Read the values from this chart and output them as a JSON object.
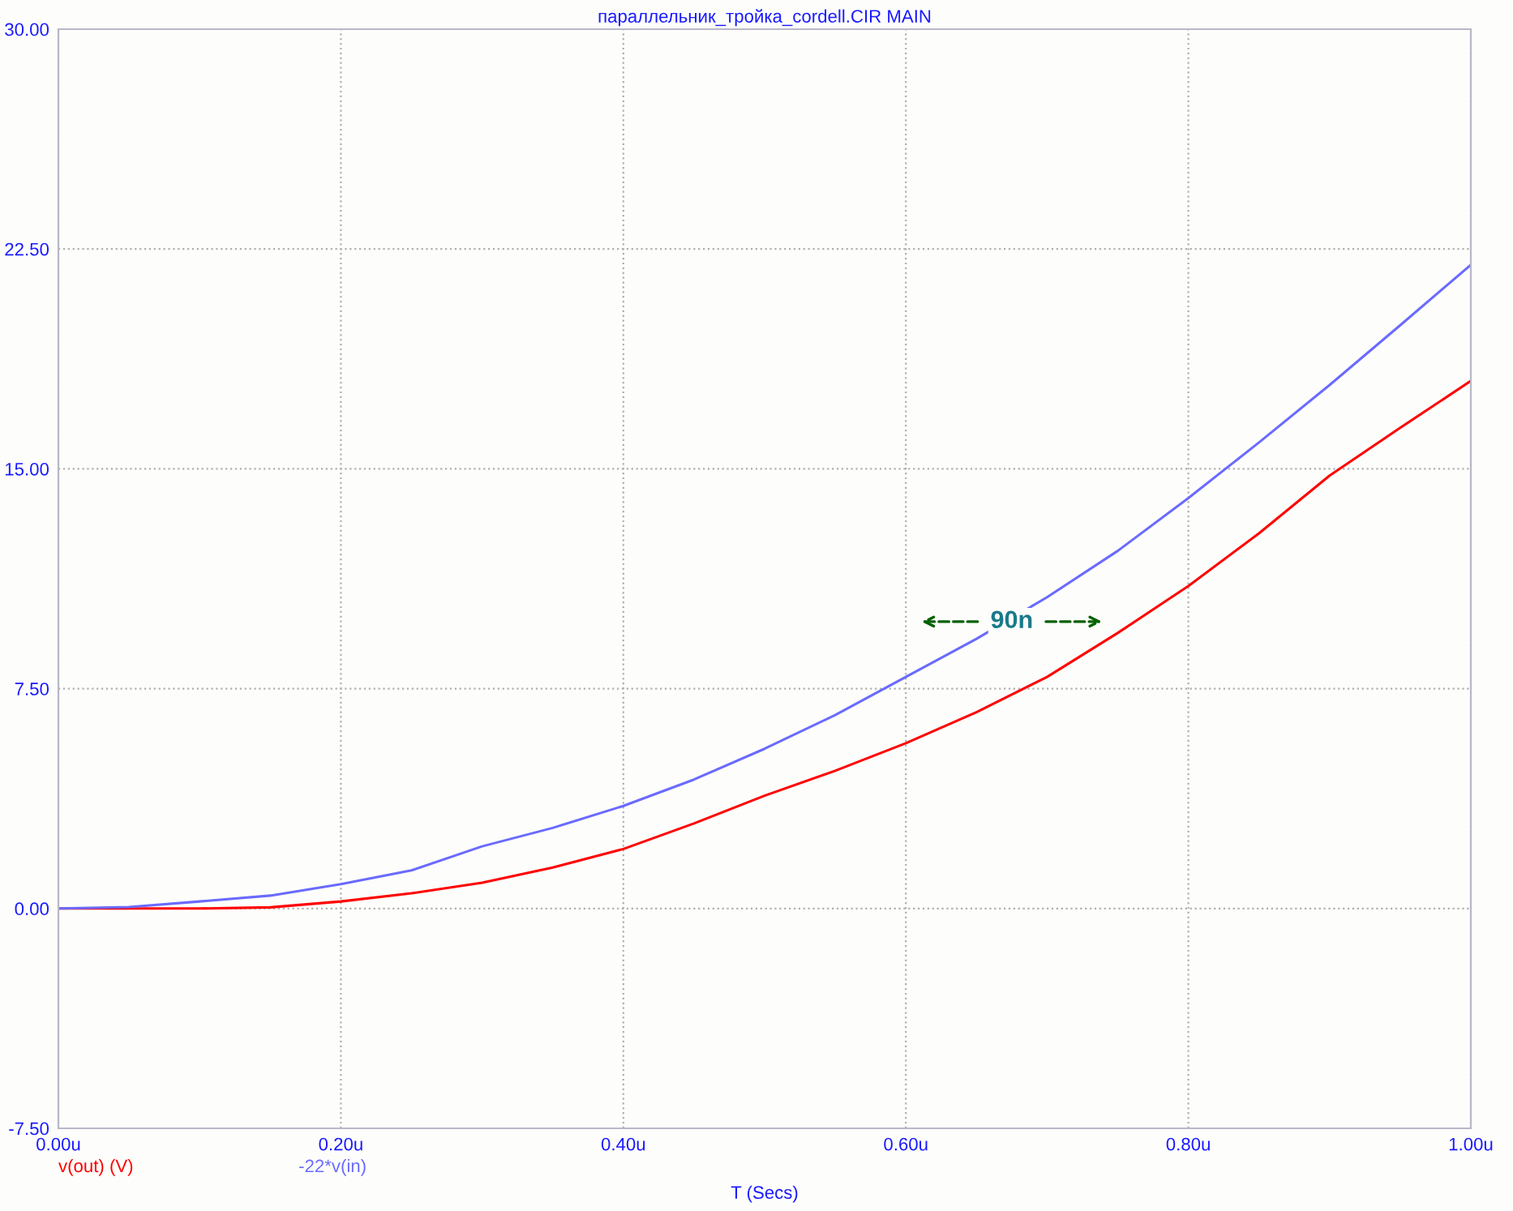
{
  "chart_data": {
    "type": "line",
    "title": "параллельник_тройка_cordell.CIR MAIN",
    "xlabel": "T (Secs)",
    "x": [
      0,
      0.05,
      0.1,
      0.15,
      0.2,
      0.25,
      0.3,
      0.35,
      0.4,
      0.45,
      0.5,
      0.55,
      0.6,
      0.65,
      0.7,
      0.75,
      0.8,
      0.85,
      0.9,
      0.95,
      1.0
    ],
    "series": [
      {
        "name": "v(out) (V)",
        "color": "#ff0000",
        "values": [
          0,
          0,
          0,
          0.04,
          0.24,
          0.52,
          0.88,
          1.4,
          2.03,
          2.9,
          3.85,
          4.7,
          5.64,
          6.7,
          7.9,
          9.4,
          11.0,
          12.8,
          14.77,
          16.4,
          18.0
        ]
      },
      {
        "name": "-22*v(in)",
        "color": "#6a6aff",
        "values": [
          0,
          0.05,
          0.24,
          0.44,
          0.83,
          1.3,
          2.12,
          2.75,
          3.5,
          4.4,
          5.45,
          6.6,
          7.9,
          9.2,
          10.62,
          12.2,
          14.0,
          15.9,
          17.86,
          19.9,
          21.96
        ]
      }
    ],
    "xlim": [
      0,
      1.0
    ],
    "xticks": [
      {
        "value": 0,
        "label": "0.00u"
      },
      {
        "value": 0.2,
        "label": "0.20u"
      },
      {
        "value": 0.4,
        "label": "0.40u"
      },
      {
        "value": 0.6,
        "label": "0.60u"
      },
      {
        "value": 0.8,
        "label": "0.80u"
      },
      {
        "value": 1.0,
        "label": "1.00u"
      }
    ],
    "ylim": [
      -7.5,
      30
    ],
    "yticks": [
      {
        "value": -7.5,
        "label": "-7.50"
      },
      {
        "value": 0,
        "label": "0.00"
      },
      {
        "value": 7.5,
        "label": "7.50"
      },
      {
        "value": 15,
        "label": "15.00"
      },
      {
        "value": 22.5,
        "label": "22.50"
      },
      {
        "value": 30,
        "label": "30.00"
      }
    ],
    "grid": true,
    "line_style": "solid",
    "legend": "bottom left",
    "annotations": [
      "90n"
    ]
  }
}
